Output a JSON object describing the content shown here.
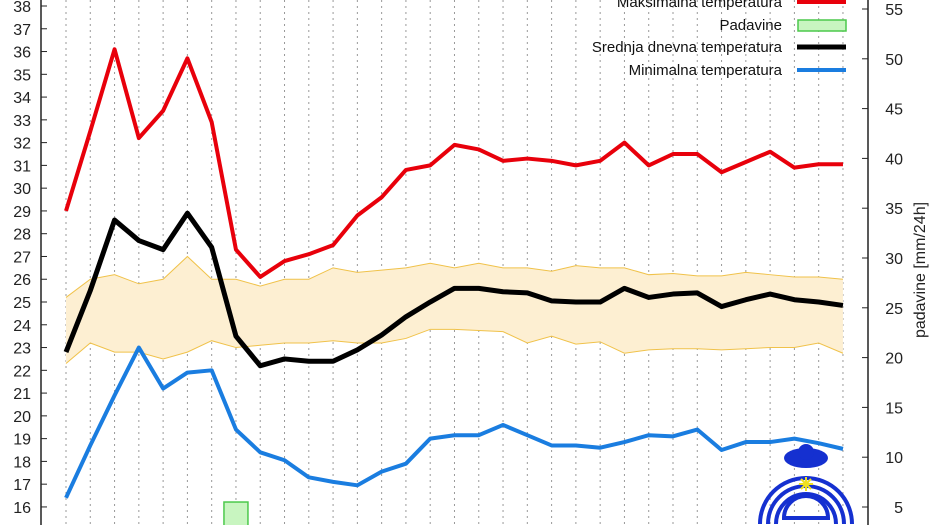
{
  "chart_data": {
    "type": "line",
    "title": "",
    "xlabel": "",
    "ylabel": "",
    "y2label": "padavine [mm/24h]",
    "ylim": [
      15.75,
      38.25
    ],
    "y2lim": [
      3.4,
      55.9
    ],
    "yticks": [
      16,
      17,
      18,
      19,
      20,
      21,
      22,
      23,
      24,
      25,
      26,
      27,
      28,
      29,
      30,
      31,
      32,
      33,
      34,
      35,
      36,
      37,
      38
    ],
    "y2ticks": [
      5,
      10,
      15,
      20,
      25,
      30,
      35,
      40,
      45,
      50,
      55
    ],
    "x": [
      0,
      1,
      2,
      3,
      4,
      5,
      6,
      7,
      8,
      9,
      10,
      11,
      12,
      13,
      14,
      15,
      16,
      17,
      18,
      19,
      20,
      21,
      22,
      23,
      24,
      25,
      26,
      27,
      28,
      29,
      30,
      31,
      32
    ],
    "grid": "vertical dotted",
    "legend_position": "top-right",
    "legend": [
      "Maksimalna temperatura",
      "Padavine",
      "Srednja dnevna temperatura",
      "Minimalna temperatura"
    ],
    "series": [
      {
        "name": "Maksimalna temperatura",
        "color": "#e8000b",
        "values": [
          29.0,
          32.5,
          36.1,
          32.2,
          33.4,
          35.7,
          32.9,
          27.3,
          26.1,
          26.8,
          27.1,
          27.5,
          28.8,
          29.6,
          30.8,
          31.0,
          31.9,
          31.7,
          31.2,
          31.3,
          31.2,
          31.0,
          31.2,
          32.0,
          31.0,
          31.5,
          31.5,
          30.7,
          31.15,
          31.6,
          30.9,
          31.05,
          31.05
        ]
      },
      {
        "name": "Srednja dnevna temperatura",
        "color": "#000000",
        "values": [
          22.8,
          25.5,
          28.6,
          27.7,
          27.3,
          28.9,
          27.4,
          23.5,
          22.2,
          22.5,
          22.4,
          22.4,
          22.9,
          23.55,
          24.35,
          25.0,
          25.6,
          25.6,
          25.45,
          25.4,
          25.05,
          25.0,
          25.0,
          25.6,
          25.2,
          25.35,
          25.4,
          24.8,
          25.1,
          25.35,
          25.1,
          25.0,
          24.85
        ]
      },
      {
        "name": "Minimalna temperatura",
        "color": "#1a7de0",
        "values": [
          16.4,
          18.7,
          20.9,
          23.0,
          21.2,
          21.9,
          22.0,
          19.4,
          18.4,
          18.05,
          17.3,
          17.1,
          16.95,
          17.55,
          17.9,
          19.0,
          19.15,
          19.15,
          19.6,
          19.15,
          18.7,
          18.7,
          18.6,
          18.85,
          19.15,
          19.1,
          19.4,
          18.5,
          18.85,
          18.85,
          19.0,
          18.8,
          18.55
        ]
      }
    ],
    "band": {
      "color": "#fdefd2",
      "edge": "#f0c24a",
      "upper": [
        25.2,
        26.0,
        26.2,
        25.8,
        26.0,
        27.0,
        26.0,
        26.0,
        25.7,
        26.0,
        26.0,
        26.5,
        26.3,
        26.4,
        26.5,
        26.7,
        26.5,
        26.7,
        26.5,
        26.5,
        26.35,
        26.6,
        26.5,
        26.5,
        26.2,
        26.25,
        26.15,
        26.15,
        26.3,
        26.2,
        26.1,
        26.1,
        26.0
      ],
      "lower": [
        22.3,
        23.2,
        22.8,
        22.8,
        22.5,
        22.8,
        23.3,
        23.0,
        23.1,
        23.2,
        23.2,
        23.3,
        23.2,
        23.2,
        23.4,
        23.8,
        23.8,
        23.75,
        23.7,
        23.2,
        23.5,
        23.15,
        23.25,
        22.75,
        22.9,
        22.95,
        22.95,
        22.9,
        22.95,
        23.0,
        23.0,
        23.2,
        22.75
      ]
    },
    "precipitation": {
      "name": "Padavine",
      "color": "#c8f5c0",
      "edge": "#4cc94c",
      "values": [
        {
          "x": 7,
          "value": 5.5
        }
      ]
    }
  }
}
